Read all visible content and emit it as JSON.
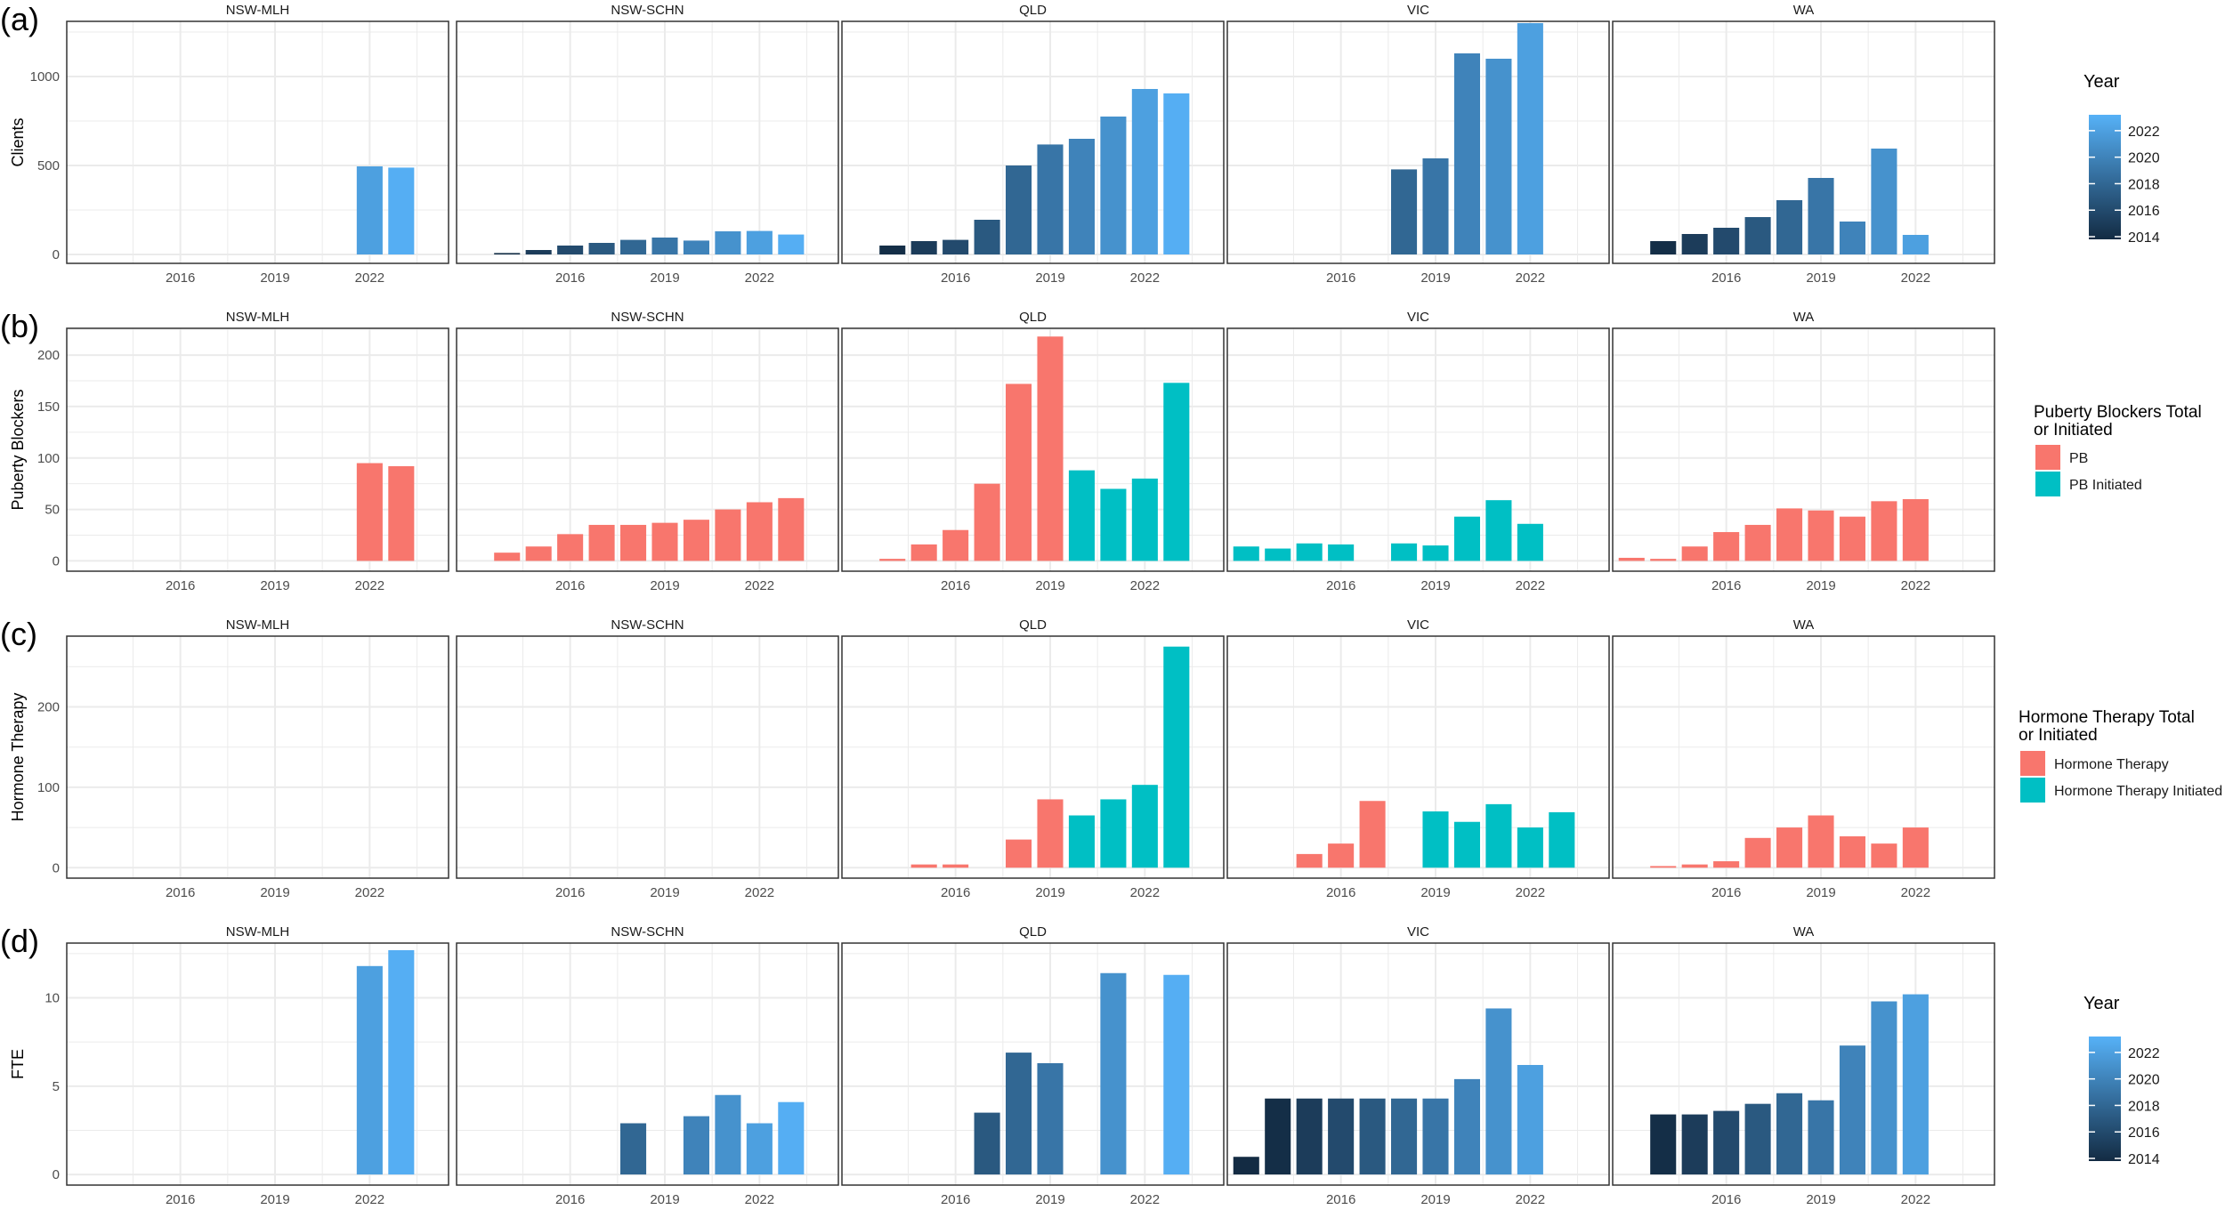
{
  "figure": {
    "facets": [
      "NSW-MLH",
      "NSW-SCHN",
      "QLD",
      "VIC",
      "WA"
    ],
    "x_ticks": [
      2016,
      2019,
      2022
    ],
    "x_range": [
      2012.4,
      2024.5
    ]
  },
  "colors": {
    "year_low": "#132B43",
    "year_high": "#56B1F7",
    "pb": "#F8766D",
    "initiated": "#00BFC4",
    "grid": "#EBEBEB",
    "panel_border": "#333333",
    "text": "#4D4D4D"
  },
  "chart_data": [
    {
      "type": "bar",
      "panel_label": "(a)",
      "ylabel": "Clients",
      "ylim": [
        -50,
        1310
      ],
      "yticks": [
        0,
        500,
        1000
      ],
      "color_mode": "year",
      "legend": {
        "title": "Year",
        "ticks": [
          2022,
          2020,
          2018,
          2016,
          2014
        ],
        "range": [
          2013.8,
          2023.2
        ],
        "placement": "right"
      },
      "series": {
        "NSW-MLH": [
          [
            2022,
            495
          ],
          [
            2023,
            488
          ]
        ],
        "NSW-SCHN": [
          [
            2014,
            8
          ],
          [
            2015,
            25
          ],
          [
            2016,
            50
          ],
          [
            2017,
            65
          ],
          [
            2018,
            82
          ],
          [
            2019,
            95
          ],
          [
            2020,
            78
          ],
          [
            2021,
            130
          ],
          [
            2022,
            132
          ],
          [
            2023,
            112
          ]
        ],
        "QLD": [
          [
            2014,
            50
          ],
          [
            2015,
            75
          ],
          [
            2016,
            82
          ],
          [
            2017,
            195
          ],
          [
            2018,
            500
          ],
          [
            2019,
            618
          ],
          [
            2020,
            650
          ],
          [
            2021,
            775
          ],
          [
            2022,
            930
          ],
          [
            2023,
            905
          ]
        ],
        "VIC": [
          [
            2018,
            478
          ],
          [
            2019,
            540
          ],
          [
            2020,
            1130
          ],
          [
            2021,
            1100
          ],
          [
            2022,
            1300
          ]
        ],
        "WA": [
          [
            2014,
            75
          ],
          [
            2015,
            115
          ],
          [
            2016,
            150
          ],
          [
            2017,
            210
          ],
          [
            2018,
            305
          ],
          [
            2019,
            430
          ],
          [
            2020,
            185
          ],
          [
            2021,
            595
          ],
          [
            2022,
            110
          ]
        ]
      }
    },
    {
      "type": "bar",
      "panel_label": "(b)",
      "ylabel": "Puberty Blockers",
      "ylim": [
        -10,
        226
      ],
      "yticks": [
        0,
        50,
        100,
        150,
        200
      ],
      "color_mode": "category",
      "legend": {
        "title": [
          "Puberty Blockers Total",
          " or Initiated"
        ],
        "items": [
          {
            "key": "PB",
            "label": "PB",
            "color": "#F8766D"
          },
          {
            "key": "PBI",
            "label": "PB Initiated",
            "color": "#00BFC4"
          }
        ],
        "placement": "right"
      },
      "series": {
        "NSW-MLH": [
          [
            2022,
            95,
            "PB"
          ],
          [
            2023,
            92,
            "PB"
          ]
        ],
        "NSW-SCHN": [
          [
            2014,
            8,
            "PB"
          ],
          [
            2015,
            14,
            "PB"
          ],
          [
            2016,
            26,
            "PB"
          ],
          [
            2017,
            35,
            "PB"
          ],
          [
            2018,
            35,
            "PB"
          ],
          [
            2019,
            37,
            "PB"
          ],
          [
            2020,
            40,
            "PB"
          ],
          [
            2021,
            50,
            "PB"
          ],
          [
            2022,
            57,
            "PB"
          ],
          [
            2023,
            61,
            "PB"
          ]
        ],
        "QLD": [
          [
            2014,
            2,
            "PB"
          ],
          [
            2015,
            16,
            "PB"
          ],
          [
            2016,
            30,
            "PB"
          ],
          [
            2017,
            75,
            "PB"
          ],
          [
            2018,
            172,
            "PB"
          ],
          [
            2019,
            218,
            "PB"
          ],
          [
            2020,
            88,
            "PBI"
          ],
          [
            2021,
            70,
            "PBI"
          ],
          [
            2022,
            80,
            "PBI"
          ],
          [
            2023,
            173,
            "PBI"
          ]
        ],
        "VIC": [
          [
            2013,
            14,
            "PBI"
          ],
          [
            2014,
            12,
            "PBI"
          ],
          [
            2015,
            17,
            "PBI"
          ],
          [
            2016,
            16,
            "PBI"
          ],
          [
            2018,
            17,
            "PBI"
          ],
          [
            2019,
            15,
            "PBI"
          ],
          [
            2020,
            43,
            "PBI"
          ],
          [
            2021,
            59,
            "PBI"
          ],
          [
            2022,
            36,
            "PBI"
          ]
        ],
        "WA": [
          [
            2013,
            3,
            "PB"
          ],
          [
            2014,
            2,
            "PB"
          ],
          [
            2015,
            14,
            "PB"
          ],
          [
            2016,
            28,
            "PB"
          ],
          [
            2017,
            35,
            "PB"
          ],
          [
            2018,
            51,
            "PB"
          ],
          [
            2019,
            49,
            "PB"
          ],
          [
            2020,
            43,
            "PB"
          ],
          [
            2021,
            58,
            "PB"
          ],
          [
            2022,
            60,
            "PB"
          ]
        ]
      }
    },
    {
      "type": "bar",
      "panel_label": "(c)",
      "ylabel": "Hormone Therapy",
      "ylim": [
        -13,
        288
      ],
      "yticks": [
        0,
        100,
        200
      ],
      "color_mode": "category",
      "legend": {
        "title": [
          "Hormone Therapy Total",
          "or Initiated"
        ],
        "items": [
          {
            "key": "HT",
            "label": "Hormone Therapy",
            "color": "#F8766D"
          },
          {
            "key": "HTI",
            "label": "Hormone Therapy Initiated",
            "color": "#00BFC4"
          }
        ],
        "placement": "right"
      },
      "series": {
        "NSW-MLH": [],
        "NSW-SCHN": [],
        "QLD": [
          [
            2015,
            4,
            "HT"
          ],
          [
            2016,
            4,
            "HT"
          ],
          [
            2018,
            35,
            "HT"
          ],
          [
            2019,
            85,
            "HT"
          ],
          [
            2020,
            65,
            "HTI"
          ],
          [
            2021,
            85,
            "HTI"
          ],
          [
            2022,
            103,
            "HTI"
          ],
          [
            2023,
            275,
            "HTI"
          ]
        ],
        "VIC": [
          [
            2015,
            17,
            "HT"
          ],
          [
            2016,
            30,
            "HT"
          ],
          [
            2017,
            83,
            "HT"
          ],
          [
            2019,
            70,
            "HTI"
          ],
          [
            2020,
            57,
            "HTI"
          ],
          [
            2021,
            79,
            "HTI"
          ],
          [
            2022,
            50,
            "HTI"
          ],
          [
            2023,
            69,
            "HTI"
          ]
        ],
        "WA": [
          [
            2014,
            2,
            "HT"
          ],
          [
            2015,
            4,
            "HT"
          ],
          [
            2016,
            8,
            "HT"
          ],
          [
            2017,
            37,
            "HT"
          ],
          [
            2018,
            50,
            "HT"
          ],
          [
            2019,
            65,
            "HT"
          ],
          [
            2020,
            39,
            "HT"
          ],
          [
            2021,
            30,
            "HT"
          ],
          [
            2022,
            50,
            "HT"
          ]
        ]
      }
    },
    {
      "type": "bar",
      "panel_label": "(d)",
      "ylabel": "FTE",
      "ylim": [
        -0.6,
        13.1
      ],
      "yticks": [
        0,
        5,
        10
      ],
      "color_mode": "year",
      "legend": {
        "title": "Year",
        "ticks": [
          2022,
          2020,
          2018,
          2016,
          2014
        ],
        "range": [
          2013.8,
          2023.2
        ],
        "placement": "right"
      },
      "series": {
        "NSW-MLH": [
          [
            2022,
            11.8
          ],
          [
            2023,
            12.7
          ]
        ],
        "NSW-SCHN": [
          [
            2018,
            2.9
          ],
          [
            2020,
            3.3
          ],
          [
            2021,
            4.5
          ],
          [
            2022,
            2.9
          ],
          [
            2023,
            4.1
          ]
        ],
        "QLD": [
          [
            2017,
            3.5
          ],
          [
            2018,
            6.9
          ],
          [
            2019,
            6.3
          ],
          [
            2021,
            11.4
          ],
          [
            2023,
            11.3
          ]
        ],
        "VIC": [
          [
            2013,
            1.0
          ],
          [
            2014,
            4.3
          ],
          [
            2015,
            4.3
          ],
          [
            2016,
            4.3
          ],
          [
            2017,
            4.3
          ],
          [
            2018,
            4.3
          ],
          [
            2019,
            4.3
          ],
          [
            2020,
            5.4
          ],
          [
            2021,
            9.4
          ],
          [
            2022,
            6.2
          ]
        ],
        "WA": [
          [
            2014,
            3.4
          ],
          [
            2015,
            3.4
          ],
          [
            2016,
            3.6
          ],
          [
            2017,
            4.0
          ],
          [
            2018,
            4.6
          ],
          [
            2019,
            4.2
          ],
          [
            2020,
            7.3
          ],
          [
            2021,
            9.8
          ],
          [
            2022,
            10.2
          ]
        ]
      }
    }
  ]
}
